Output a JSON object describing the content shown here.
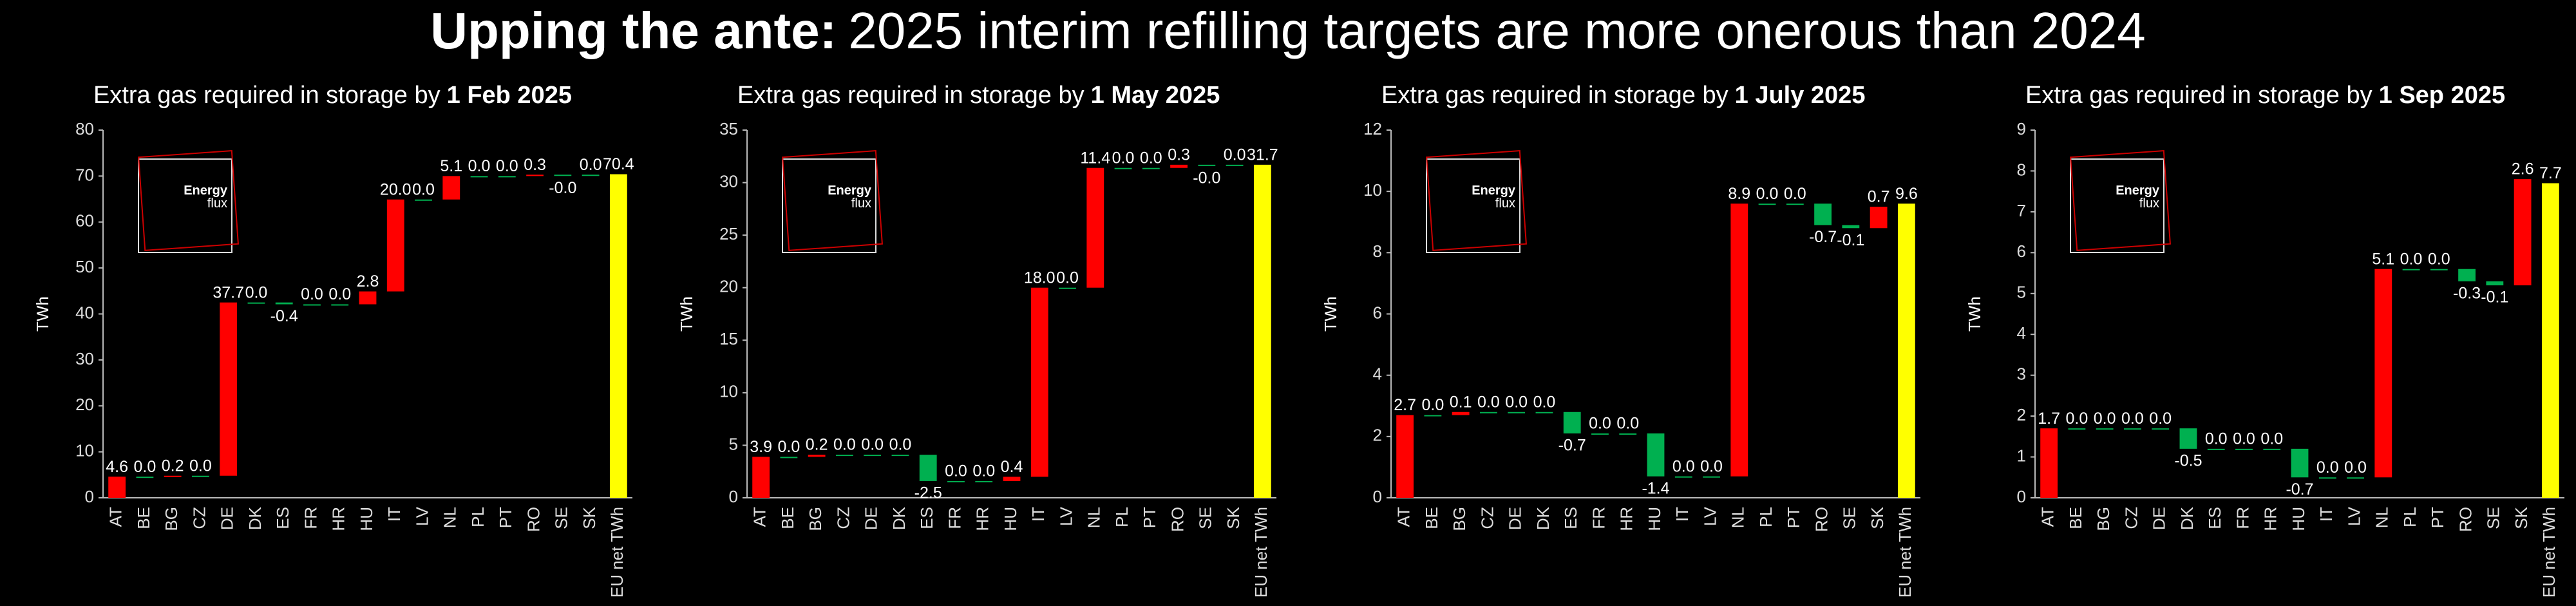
{
  "headline": {
    "bold": "Upping the ante:",
    "rest": "2025 interim refilling targets are more onerous than 2024"
  },
  "logo": {
    "word1": "Energy",
    "word2": "flux"
  },
  "chart_data": [
    {
      "type": "waterfall",
      "title": "Extra gas required in storage by",
      "title_emphasis": "1 Feb 2025",
      "y_label": "TWh",
      "categories": [
        "AT",
        "BE",
        "BG",
        "CZ",
        "DE",
        "DK",
        "ES",
        "FR",
        "HR",
        "HU",
        "IT",
        "LV",
        "NL",
        "PL",
        "PT",
        "RO",
        "SE",
        "SK",
        "EU net TWh"
      ],
      "values": [
        4.6,
        0.0,
        0.2,
        0.0,
        37.7,
        0.0,
        -0.4,
        0.0,
        0.0,
        2.8,
        20.0,
        0.0,
        5.1,
        0.0,
        0.0,
        0.3,
        -0.0,
        0.0,
        70.4
      ],
      "value_labels": [
        "4.6",
        "0.0",
        "0.2",
        "0.0",
        "37.7",
        "0.0",
        "-0.4",
        "0.0",
        "0.0",
        "2.8",
        "20.0",
        "0.0",
        "5.1",
        "0.0",
        "0.0",
        "0.3",
        "-0.0",
        "0.0",
        "70.4"
      ],
      "colors": {
        "increase": "#ff0000",
        "decrease": "#00b050",
        "total": "#ffff00"
      },
      "ylim": [
        0,
        80
      ],
      "yticks": [
        0,
        10,
        20,
        30,
        40,
        50,
        60,
        70,
        80
      ]
    },
    {
      "type": "waterfall",
      "title": "Extra gas required in storage by",
      "title_emphasis": "1 May 2025",
      "y_label": "TWh",
      "categories": [
        "AT",
        "BE",
        "BG",
        "CZ",
        "DE",
        "DK",
        "ES",
        "FR",
        "HR",
        "HU",
        "IT",
        "LV",
        "NL",
        "PL",
        "PT",
        "RO",
        "SE",
        "SK",
        "EU net TWh"
      ],
      "values": [
        3.9,
        0.0,
        0.2,
        0.0,
        0.0,
        0.0,
        -2.5,
        0.0,
        0.0,
        0.4,
        18.0,
        0.0,
        11.4,
        0.0,
        0.0,
        0.3,
        -0.0,
        0.0,
        31.7
      ],
      "value_labels": [
        "3.9",
        "0.0",
        "0.2",
        "0.0",
        "0.0",
        "0.0",
        "-2.5",
        "0.0",
        "0.0",
        "0.4",
        "18.0",
        "0.0",
        "11.4",
        "0.0",
        "0.0",
        "0.3",
        "-0.0",
        "0.0",
        "31.7"
      ],
      "colors": {
        "increase": "#ff0000",
        "decrease": "#00b050",
        "total": "#ffff00"
      },
      "ylim": [
        0,
        35
      ],
      "yticks": [
        0,
        5,
        10,
        15,
        20,
        25,
        30,
        35
      ]
    },
    {
      "type": "waterfall",
      "title": "Extra gas required in storage by",
      "title_emphasis": "1 July 2025",
      "y_label": "TWh",
      "categories": [
        "AT",
        "BE",
        "BG",
        "CZ",
        "DE",
        "DK",
        "ES",
        "FR",
        "HR",
        "HU",
        "IT",
        "LV",
        "NL",
        "PL",
        "PT",
        "RO",
        "SE",
        "SK",
        "EU net TWh"
      ],
      "values": [
        2.7,
        0.0,
        0.1,
        0.0,
        0.0,
        0.0,
        -0.7,
        0.0,
        0.0,
        -1.4,
        0.0,
        0.0,
        8.9,
        0.0,
        0.0,
        -0.7,
        -0.1,
        0.7,
        9.6
      ],
      "value_labels": [
        "2.7",
        "0.0",
        "0.1",
        "0.0",
        "0.0",
        "0.0",
        "-0.7",
        "0.0",
        "0.0",
        "-1.4",
        "0.0",
        "0.0",
        "8.9",
        "0.0",
        "0.0",
        "-0.7",
        "-0.1",
        "0.7",
        "9.6"
      ],
      "colors": {
        "increase": "#ff0000",
        "decrease": "#00b050",
        "total": "#ffff00"
      },
      "ylim": [
        0,
        12
      ],
      "yticks": [
        0,
        2,
        4,
        6,
        8,
        10,
        12
      ]
    },
    {
      "type": "waterfall",
      "title": "Extra gas required in storage by",
      "title_emphasis": "1 Sep 2025",
      "y_label": "TWh",
      "categories": [
        "AT",
        "BE",
        "BG",
        "CZ",
        "DE",
        "DK",
        "ES",
        "FR",
        "HR",
        "HU",
        "IT",
        "LV",
        "NL",
        "PL",
        "PT",
        "RO",
        "SE",
        "SK",
        "EU net TWh"
      ],
      "values": [
        1.7,
        0.0,
        0.0,
        0.0,
        0.0,
        -0.5,
        0.0,
        0.0,
        0.0,
        -0.7,
        0.0,
        0.0,
        5.1,
        0.0,
        0.0,
        -0.3,
        -0.1,
        2.6,
        7.7
      ],
      "value_labels": [
        "1.7",
        "0.0",
        "0.0",
        "0.0",
        "0.0",
        "-0.5",
        "0.0",
        "0.0",
        "0.0",
        "-0.7",
        "0.0",
        "0.0",
        "5.1",
        "0.0",
        "0.0",
        "-0.3",
        "-0.1",
        "2.6",
        "7.7"
      ],
      "colors": {
        "increase": "#ff0000",
        "decrease": "#00b050",
        "total": "#ffff00"
      },
      "ylim": [
        0,
        9
      ],
      "yticks": [
        0,
        1,
        2,
        3,
        4,
        5,
        6,
        7,
        8,
        9
      ]
    }
  ]
}
